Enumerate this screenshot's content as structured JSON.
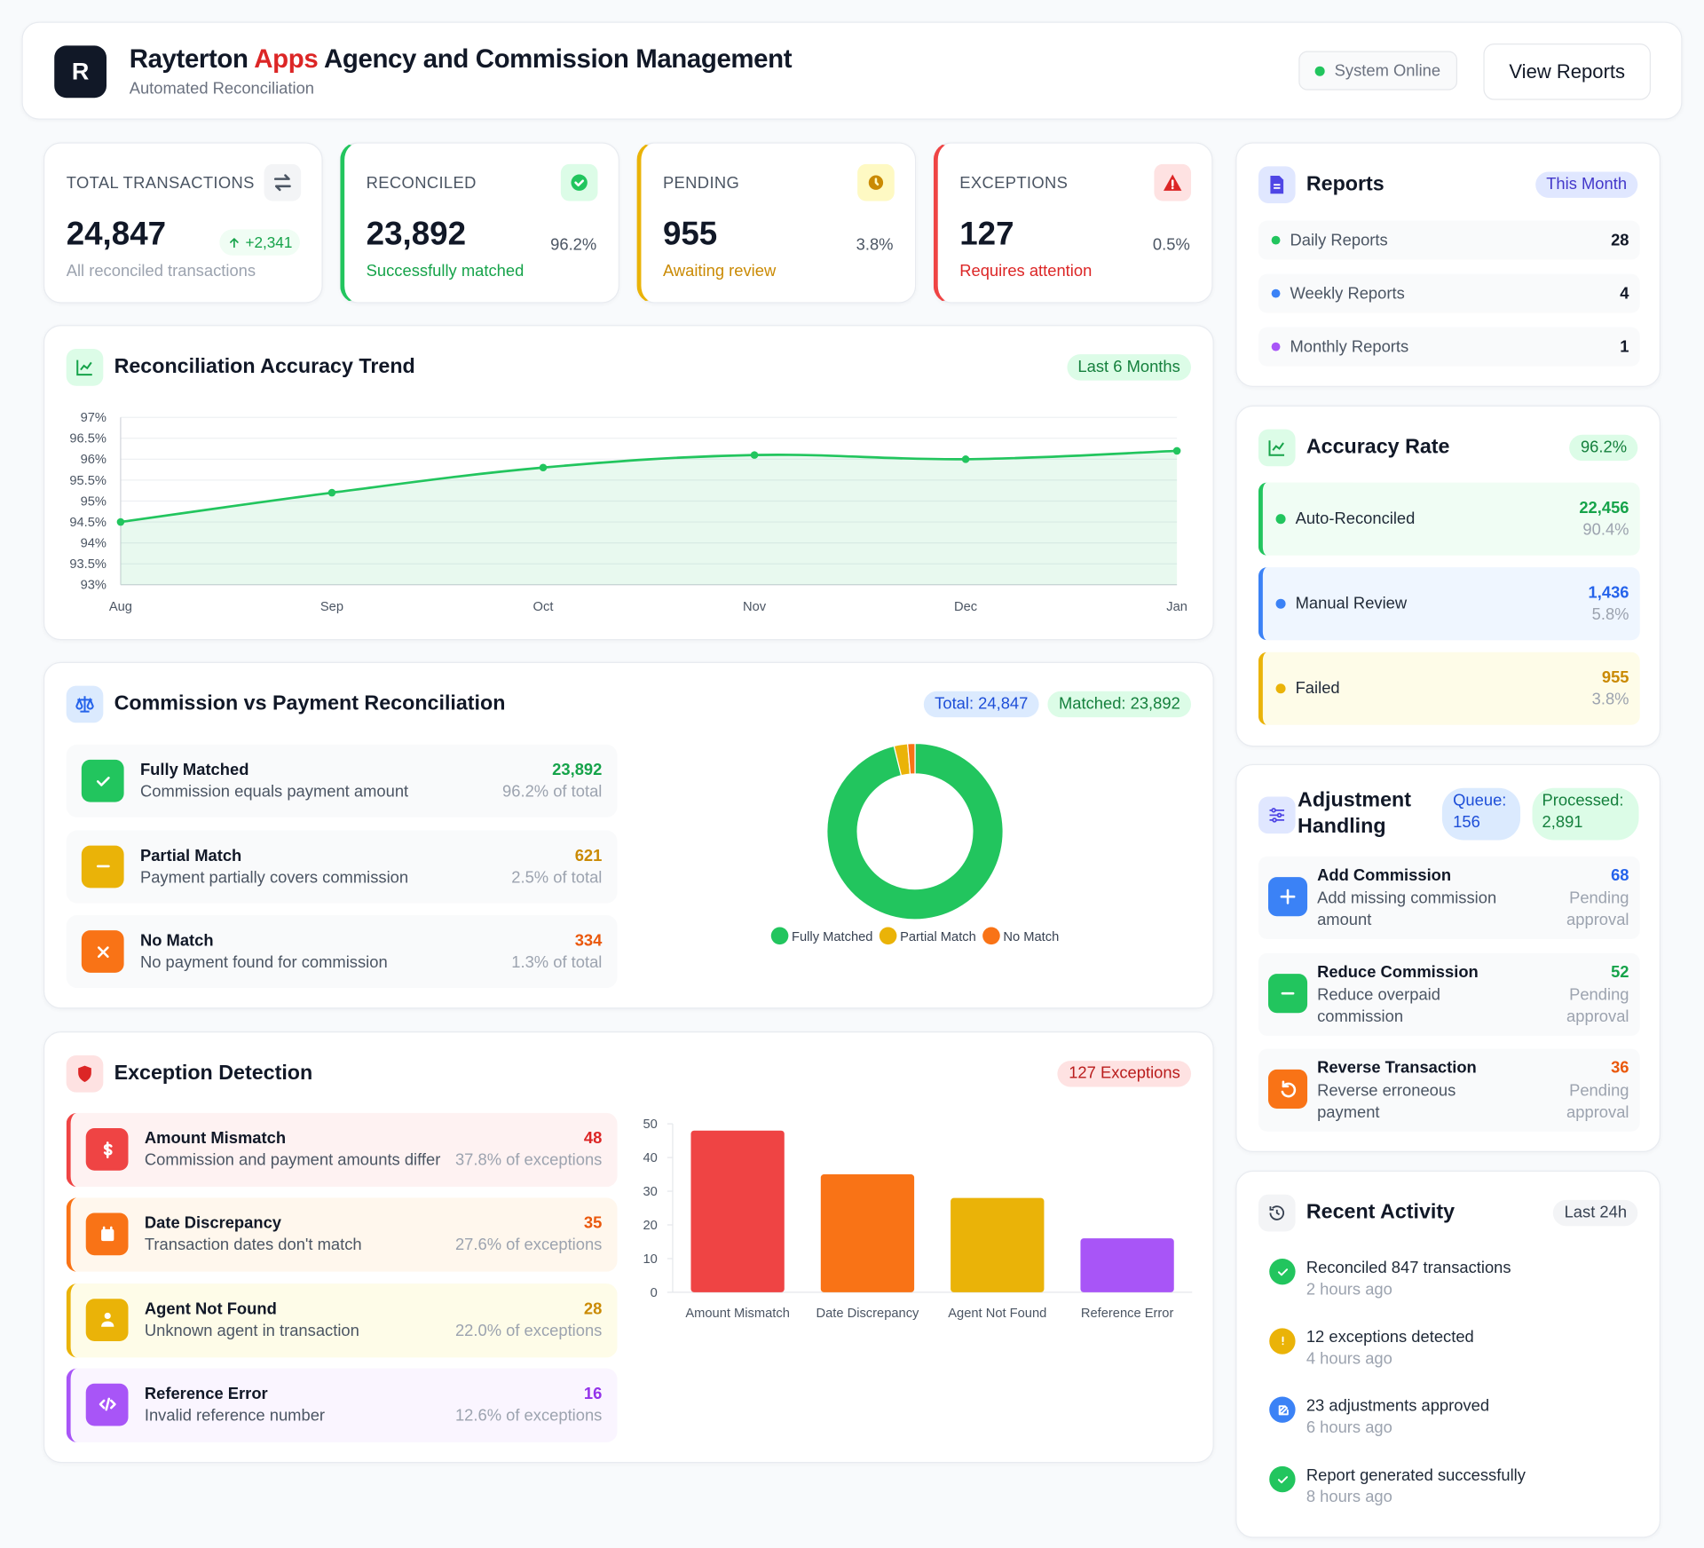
{
  "header": {
    "logo": "R",
    "title_start": "Rayterton",
    "title_highlight": "Apps",
    "title_end": "Agency and Commission Management",
    "subtitle": "Automated Reconciliation",
    "status": "System Online",
    "button": "View Reports"
  },
  "stats": [
    {
      "label": "TOTAL TRANSACTIONS",
      "value": "24,847",
      "note": "All reconciled transactions",
      "change": "+2,341"
    },
    {
      "label": "RECONCILED",
      "value": "23,892",
      "note": "Successfully matched",
      "share": "96.2%"
    },
    {
      "label": "PENDING",
      "value": "955",
      "note": "Awaiting review",
      "share": "3.8%"
    },
    {
      "label": "EXCEPTIONS",
      "value": "127",
      "note": "Requires attention",
      "share": "0.5%"
    }
  ],
  "trend": {
    "title": "Reconciliation Accuracy Trend",
    "badge": "Last 6 Months"
  },
  "commission": {
    "title": "Commission vs Payment Reconciliation",
    "badges": [
      "Total: 24,847",
      "Matched: 23,892"
    ],
    "items": [
      {
        "name": "Fully Matched",
        "desc": "Commission equals payment amount",
        "value": "23,892",
        "share": "96.2% of total"
      },
      {
        "name": "Partial Match",
        "desc": "Payment partially covers commission",
        "value": "621",
        "share": "2.5% of total"
      },
      {
        "name": "No Match",
        "desc": "No payment found for commission",
        "value": "334",
        "share": "1.3% of total"
      }
    ]
  },
  "exceptions": {
    "title": "Exception Detection",
    "badge": "127 Exceptions",
    "items": [
      {
        "name": "Amount Mismatch",
        "desc": "Commission and payment amounts differ",
        "value": "48",
        "share": "37.8% of exceptions"
      },
      {
        "name": "Date Discrepancy",
        "desc": "Transaction dates don't match",
        "value": "35",
        "share": "27.6% of exceptions"
      },
      {
        "name": "Agent Not Found",
        "desc": "Unknown agent in transaction",
        "value": "28",
        "share": "22.0% of exceptions"
      },
      {
        "name": "Reference Error",
        "desc": "Invalid reference number",
        "value": "16",
        "share": "12.6% of exceptions"
      }
    ]
  },
  "reports": {
    "title": "Reports",
    "badge": "This Month",
    "items": [
      {
        "name": "Daily Reports",
        "count": "28"
      },
      {
        "name": "Weekly Reports",
        "count": "4"
      },
      {
        "name": "Monthly Reports",
        "count": "1"
      }
    ]
  },
  "accuracy": {
    "title": "Accuracy Rate",
    "badge": "96.2%",
    "items": [
      {
        "name": "Auto-Reconciled",
        "value": "22,456",
        "share": "90.4%"
      },
      {
        "name": "Manual Review",
        "value": "1,436",
        "share": "5.8%"
      },
      {
        "name": "Failed",
        "value": "955",
        "share": "3.8%"
      }
    ]
  },
  "adjustments": {
    "title": "Adjustment Handling",
    "badges": [
      "Queue: 156",
      "Processed: 2,891"
    ],
    "items": [
      {
        "name": "Add Commission",
        "desc": "Add missing commission amount",
        "count": "68",
        "status": "Pending approval"
      },
      {
        "name": "Reduce Commission",
        "desc": "Reduce overpaid commission",
        "count": "52",
        "status": "Pending approval"
      },
      {
        "name": "Reverse Transaction",
        "desc": "Reverse erroneous payment",
        "count": "36",
        "status": "Pending approval"
      }
    ]
  },
  "activity": {
    "title": "Recent Activity",
    "badge": "Last 24h",
    "items": [
      {
        "text": "Reconciled 847 transactions",
        "time": "2 hours ago"
      },
      {
        "text": "12 exceptions detected",
        "time": "4 hours ago"
      },
      {
        "text": "23 adjustments approved",
        "time": "6 hours ago"
      },
      {
        "text": "Report generated successfully",
        "time": "8 hours ago"
      }
    ]
  },
  "chart_data": [
    {
      "type": "line",
      "categories": [
        "Aug",
        "Sep",
        "Oct",
        "Nov",
        "Dec",
        "Jan"
      ],
      "values": [
        94.5,
        95.2,
        95.8,
        96.1,
        96.0,
        96.2
      ],
      "color": "#22c55e",
      "ylim": [
        93,
        97
      ],
      "yticks": [
        {
          "value": 93,
          "label": "93%"
        },
        {
          "value": 93.5,
          "label": "93.5%"
        },
        {
          "value": 94,
          "label": "94%"
        },
        {
          "value": 94.5,
          "label": "94.5%"
        },
        {
          "value": 95,
          "label": "95%"
        },
        {
          "value": 95.5,
          "label": "95.5%"
        },
        {
          "value": 96,
          "label": "96%"
        },
        {
          "value": 96.5,
          "label": "96.5%"
        },
        {
          "value": 97,
          "label": "97%"
        }
      ],
      "grid": true
    },
    {
      "type": "pie",
      "categories": [
        "Fully Matched",
        "Partial Match",
        "No Match"
      ],
      "values": [
        23892,
        621,
        334
      ],
      "colors": [
        "#22c55e",
        "#eab308",
        "#f97316"
      ]
    },
    {
      "type": "bar",
      "categories": [
        "Amount Mismatch",
        "Date Discrepancy",
        "Agent Not Found",
        "Reference Error"
      ],
      "values": [
        48,
        35,
        28,
        16
      ],
      "colors": [
        "#ef4444",
        "#f97316",
        "#eab308",
        "#a855f7"
      ],
      "ylim": [
        0,
        50
      ],
      "yticks": [
        0,
        10,
        20,
        30,
        40,
        50
      ],
      "grid": false
    }
  ]
}
